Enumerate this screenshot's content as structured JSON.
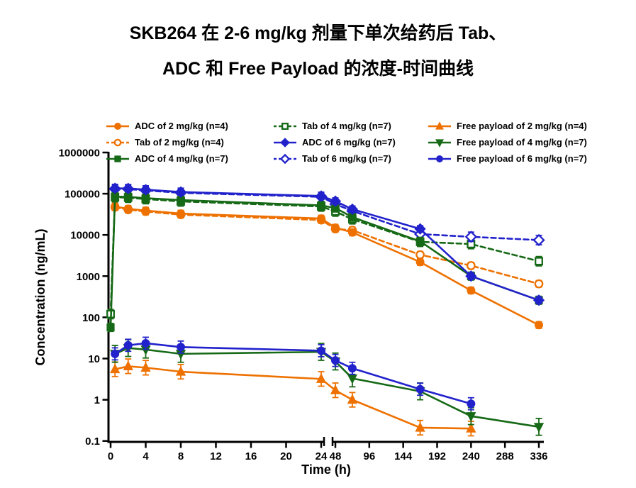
{
  "title": {
    "line1": "SKB264 在 2-6 mg/kg 剂量下单次给药后 Tab、",
    "line2": "ADC 和 Free Payload 的浓度-时间曲线"
  },
  "colors": {
    "dose2": "#EE7100",
    "dose4": "#166916",
    "dose6": "#2222CC",
    "axis": "#000000",
    "background": "#FFFFFF"
  },
  "chart_data": {
    "type": "line",
    "xlabel": "Time (h)",
    "ylabel": "Concentration (ng/mL)",
    "y_scale": "log",
    "y_ticks": [
      "0.1",
      "1",
      "10",
      "100",
      "1000",
      "10000",
      "100000",
      "1000000"
    ],
    "x_ticks_left": [
      0,
      4,
      8,
      12,
      16,
      20,
      24
    ],
    "x_ticks_right": [
      48,
      96,
      144,
      192,
      240,
      288,
      336
    ],
    "x_axis_break": true,
    "legend_position": "top",
    "grid": false,
    "series": [
      {
        "label": "ADC of 2 mg/kg (n=4)",
        "color": "dose2",
        "line": "solid",
        "marker": "circle",
        "fill": true,
        "err": 1.2,
        "points": [
          [
            0.5,
            49000
          ],
          [
            2,
            43000
          ],
          [
            4,
            39000
          ],
          [
            8,
            33000
          ],
          [
            24,
            25000
          ],
          [
            48,
            15000
          ],
          [
            72,
            11500
          ],
          [
            168,
            2200
          ],
          [
            240,
            450
          ],
          [
            336,
            65
          ]
        ]
      },
      {
        "label": "Tab of 2 mg/kg (n=4)",
        "color": "dose2",
        "line": "dashed",
        "marker": "circle",
        "fill": false,
        "err": 1.2,
        "points": [
          [
            0.5,
            47000
          ],
          [
            2,
            41000
          ],
          [
            4,
            37000
          ],
          [
            8,
            31000
          ],
          [
            24,
            23000
          ],
          [
            48,
            14000
          ],
          [
            72,
            13000
          ],
          [
            168,
            3300
          ],
          [
            240,
            1800
          ],
          [
            336,
            650
          ]
        ]
      },
      {
        "label": "ADC of 4 mg/kg (n=7)",
        "color": "dose4",
        "line": "solid",
        "marker": "square",
        "fill": true,
        "err": 1.25,
        "points": [
          [
            0,
            57
          ],
          [
            0.5,
            85000
          ],
          [
            2,
            84000
          ],
          [
            4,
            78000
          ],
          [
            8,
            70000
          ],
          [
            24,
            52000
          ],
          [
            48,
            45000
          ],
          [
            72,
            27000
          ],
          [
            168,
            7000
          ],
          [
            240,
            1000
          ],
          [
            336,
            260
          ]
        ]
      },
      {
        "label": "Tab of 4 mg/kg (n=7)",
        "color": "dose4",
        "line": "dashed",
        "marker": "square",
        "fill": false,
        "err": 1.3,
        "points": [
          [
            0,
            120
          ],
          [
            0.5,
            82000
          ],
          [
            2,
            80000
          ],
          [
            4,
            74000
          ],
          [
            8,
            65000
          ],
          [
            24,
            49000
          ],
          [
            48,
            37000
          ],
          [
            72,
            24000
          ],
          [
            168,
            6800
          ],
          [
            240,
            6000
          ],
          [
            336,
            2300
          ]
        ]
      },
      {
        "label": "ADC of 6 mg/kg (n=7)",
        "color": "dose6",
        "line": "solid",
        "marker": "diamond",
        "fill": true,
        "err": 1.2,
        "points": [
          [
            0.5,
            135000
          ],
          [
            2,
            134000
          ],
          [
            4,
            125000
          ],
          [
            8,
            110000
          ],
          [
            24,
            88000
          ],
          [
            48,
            66000
          ],
          [
            72,
            42000
          ],
          [
            168,
            14000
          ],
          [
            240,
            1000
          ],
          [
            336,
            260
          ]
        ]
      },
      {
        "label": "Tab of 6 mg/kg (n=7)",
        "color": "dose6",
        "line": "dashed",
        "marker": "diamond",
        "fill": false,
        "err": 1.3,
        "points": [
          [
            0.5,
            130000
          ],
          [
            2,
            129000
          ],
          [
            4,
            120000
          ],
          [
            8,
            105000
          ],
          [
            24,
            84000
          ],
          [
            48,
            56000
          ],
          [
            72,
            38000
          ],
          [
            168,
            10500
          ],
          [
            240,
            9000
          ],
          [
            336,
            7500
          ]
        ]
      },
      {
        "label": "Free payload of 2 mg/kg (n=4)",
        "color": "dose2",
        "line": "solid",
        "marker": "triangle-up",
        "fill": true,
        "err": 1.5,
        "points": [
          [
            0.5,
            5.5
          ],
          [
            2,
            6.5
          ],
          [
            4,
            6
          ],
          [
            8,
            4.8
          ],
          [
            24,
            3.2
          ],
          [
            48,
            1.7
          ],
          [
            72,
            1
          ],
          [
            168,
            0.21
          ],
          [
            240,
            0.2
          ]
        ]
      },
      {
        "label": "Free payload of 4 mg/kg (n=7)",
        "color": "dose4",
        "line": "solid",
        "marker": "triangle-down",
        "fill": true,
        "err": 1.6,
        "points": [
          [
            0.5,
            13
          ],
          [
            2,
            18
          ],
          [
            4,
            16.5
          ],
          [
            8,
            13
          ],
          [
            24,
            14.5
          ],
          [
            48,
            8.5
          ],
          [
            72,
            3.3
          ],
          [
            168,
            1.6
          ],
          [
            240,
            0.4
          ],
          [
            336,
            0.22
          ]
        ]
      },
      {
        "label": "Free payload of 6 mg/kg (n=7)",
        "color": "dose6",
        "line": "solid",
        "marker": "circle",
        "fill": true,
        "err": 1.4,
        "points": [
          [
            0.5,
            13
          ],
          [
            2,
            21
          ],
          [
            4,
            23.5
          ],
          [
            8,
            19
          ],
          [
            24,
            15.5
          ],
          [
            48,
            9
          ],
          [
            72,
            5.8
          ],
          [
            168,
            1.8
          ],
          [
            240,
            0.8
          ]
        ]
      }
    ]
  }
}
